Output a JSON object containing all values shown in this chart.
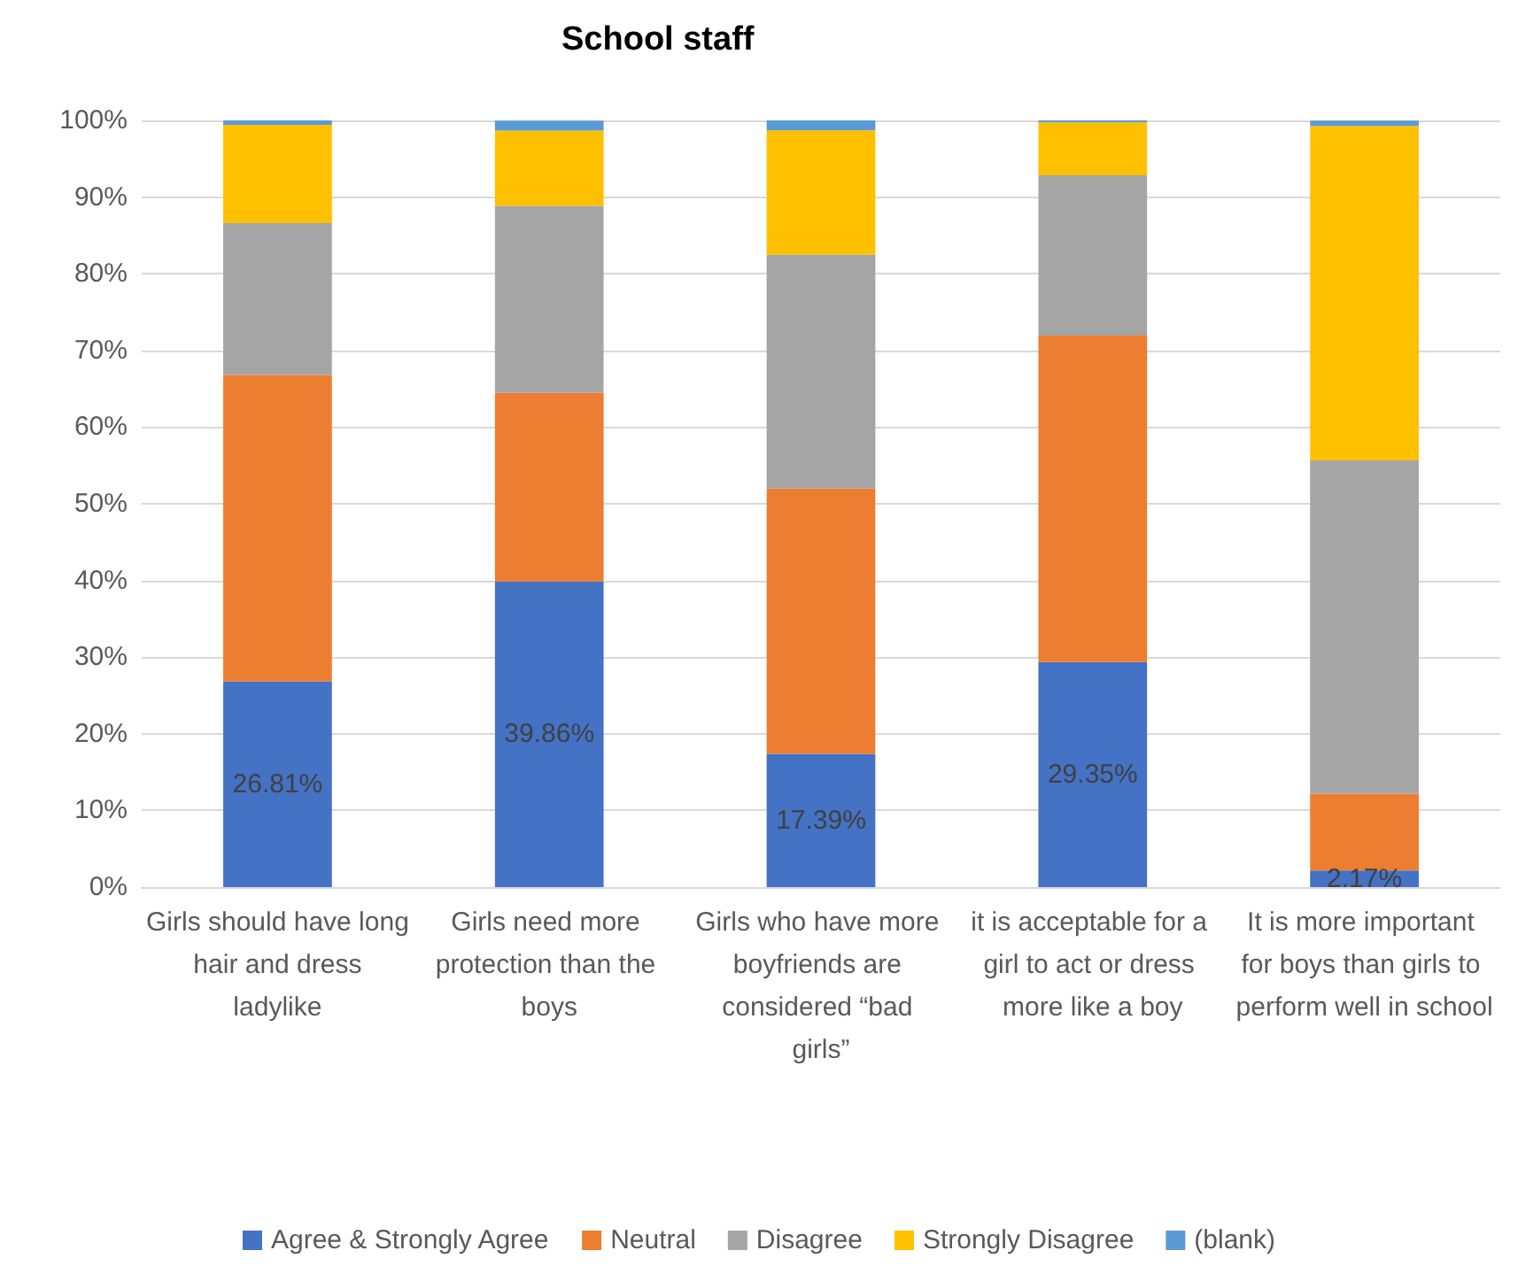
{
  "chart_data": {
    "type": "bar",
    "title": "School staff",
    "stacked": true,
    "categories": [
      "Girls should have long hair and dress ladylike",
      "Girls need more protection than the boys",
      "Girls who have more boyfriends are considered “bad girls”",
      "it is acceptable for a girl to act or dress more like a boy",
      "It is more important for boys than girls to perform well in school"
    ],
    "series": [
      {
        "name": "Agree & Strongly Agree",
        "color": "#4472c4",
        "values": [
          26.81,
          39.86,
          17.39,
          29.35,
          2.17
        ],
        "value_labels": [
          "26.81%",
          "39.86%",
          "17.39%",
          "29.35%",
          "2.17%"
        ]
      },
      {
        "name": "Neutral",
        "color": "#ed7d31",
        "values": [
          40.0,
          24.6,
          34.6,
          42.6,
          10.0
        ]
      },
      {
        "name": "Disagree",
        "color": "#a5a5a5",
        "values": [
          19.8,
          24.4,
          30.5,
          20.9,
          43.5
        ]
      },
      {
        "name": "Strongly Disagree",
        "color": "#ffc000",
        "values": [
          12.8,
          9.8,
          16.2,
          6.9,
          43.6
        ]
      },
      {
        "name": "(blank)",
        "color": "#5b9bd5",
        "values": [
          0.6,
          1.3,
          1.3,
          0.3,
          0.7
        ]
      }
    ],
    "ylim": [
      0,
      100
    ],
    "yticks": [
      {
        "value": 0,
        "label": "0%"
      },
      {
        "value": 10,
        "label": "10%"
      },
      {
        "value": 20,
        "label": "20%"
      },
      {
        "value": 30,
        "label": "30%"
      },
      {
        "value": 40,
        "label": "40%"
      },
      {
        "value": 50,
        "label": "50%"
      },
      {
        "value": 60,
        "label": "60%"
      },
      {
        "value": 70,
        "label": "70%"
      },
      {
        "value": 80,
        "label": "80%"
      },
      {
        "value": 90,
        "label": "90%"
      },
      {
        "value": 100,
        "label": "100%"
      }
    ],
    "grid": "y",
    "legend": "bottom"
  }
}
